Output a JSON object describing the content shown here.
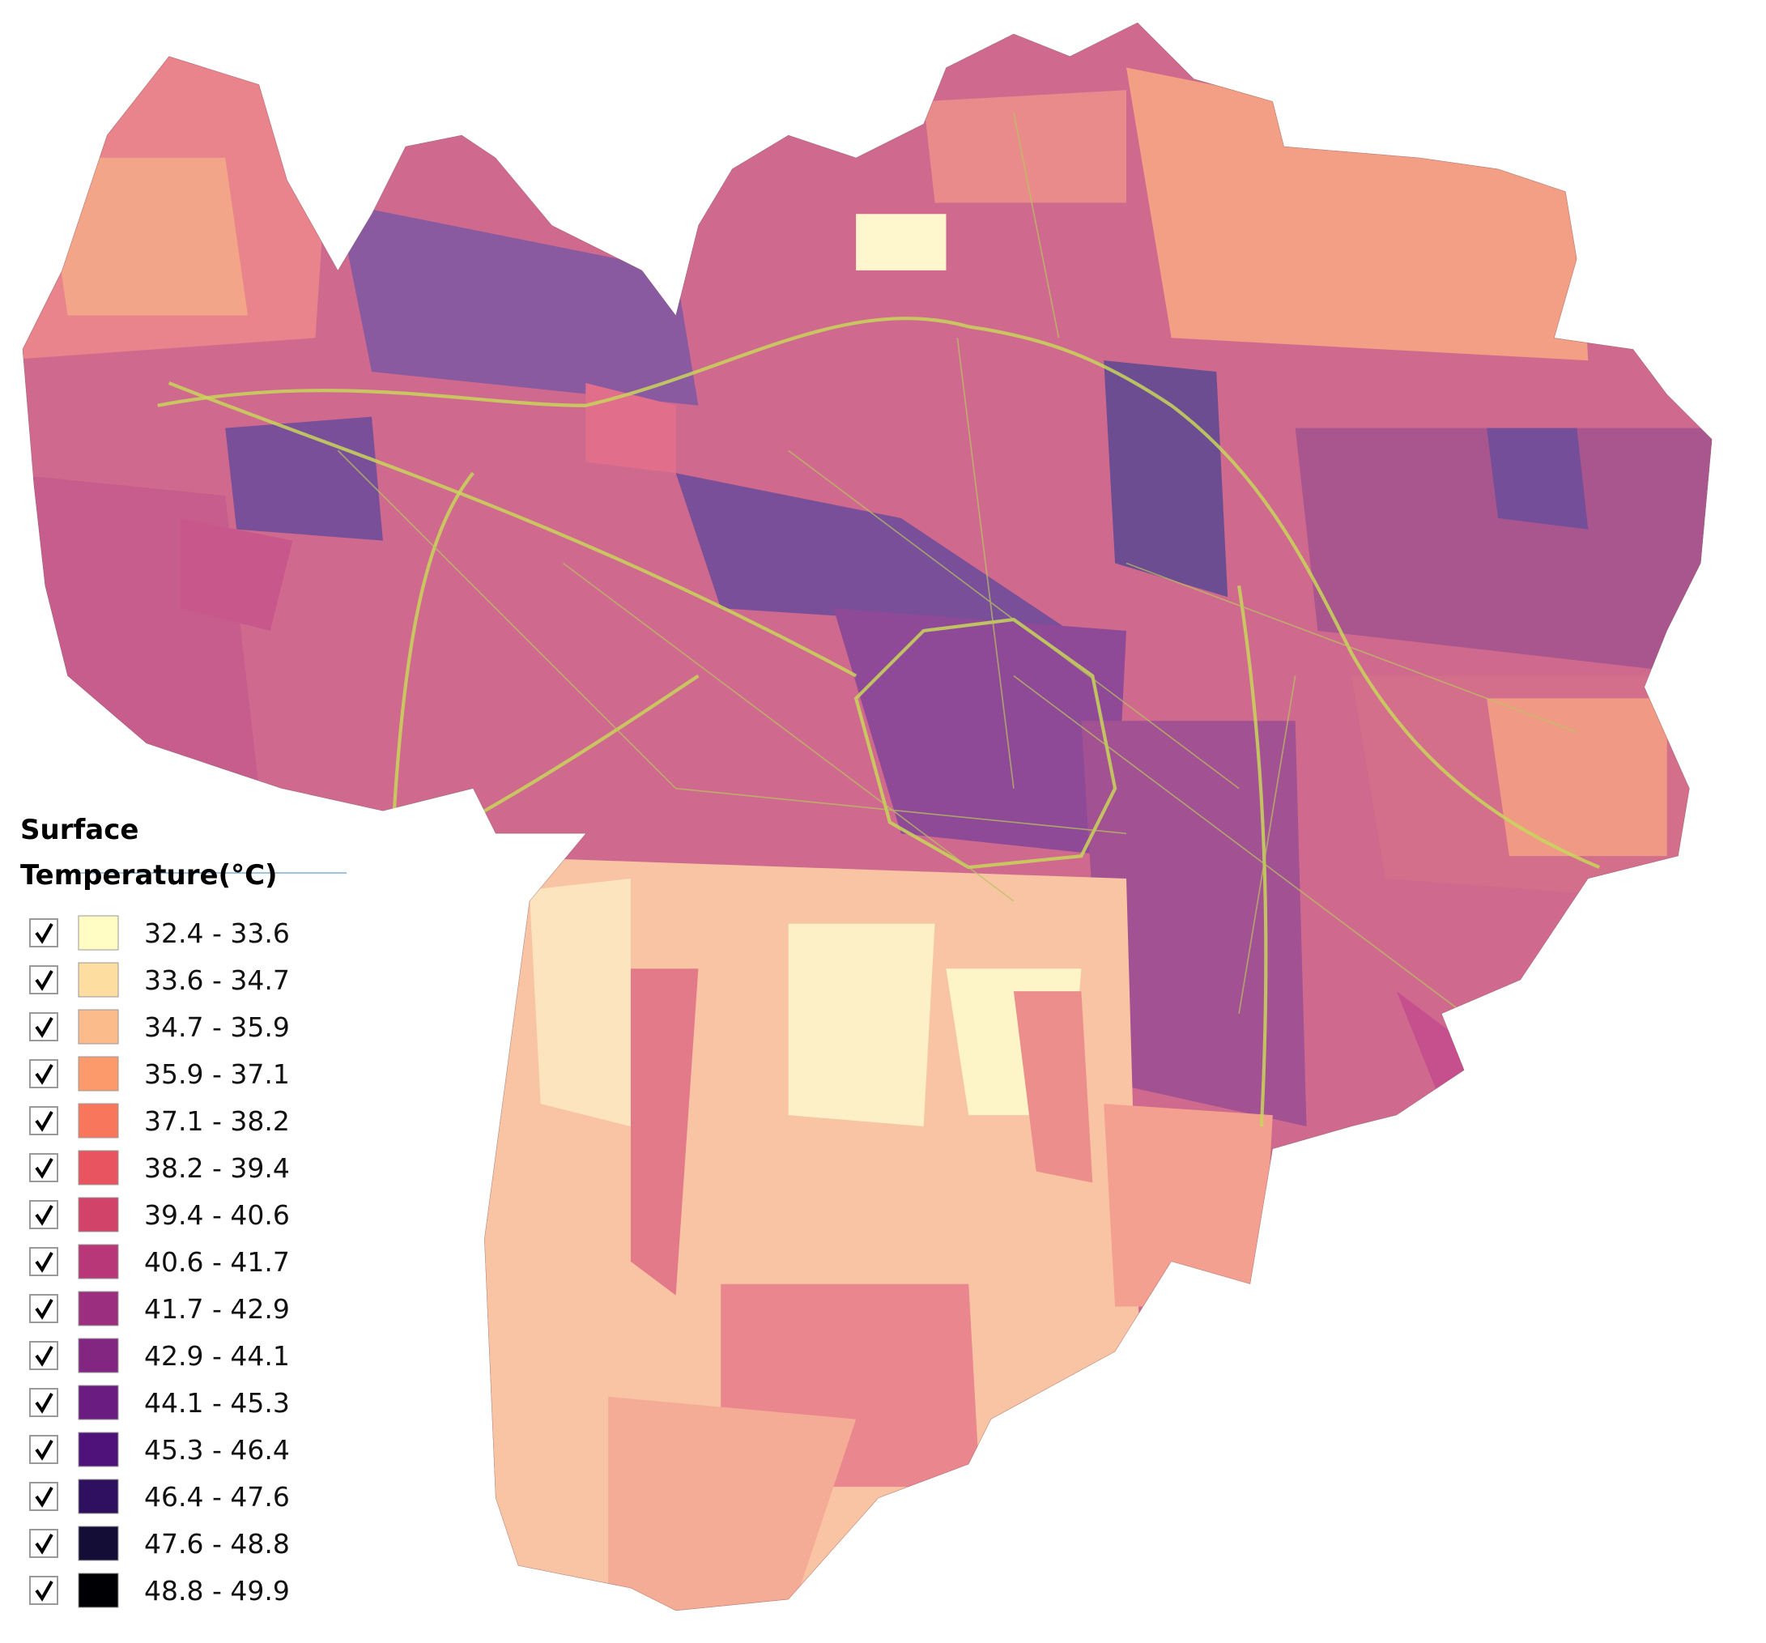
{
  "legend": {
    "title": [
      "Surface",
      "Temperature(°C)"
    ],
    "items": [
      {
        "label": "32.4 - 33.6",
        "color": "#fffdc3"
      },
      {
        "label": "33.6 - 34.7",
        "color": "#fddda0"
      },
      {
        "label": "34.7 - 35.9",
        "color": "#fcbb8b"
      },
      {
        "label": "35.9 - 37.1",
        "color": "#fc9a6c"
      },
      {
        "label": "37.1 - 38.2",
        "color": "#f8765c"
      },
      {
        "label": "38.2 - 39.4",
        "color": "#e8545f"
      },
      {
        "label": "39.4 - 40.6",
        "color": "#d14368"
      },
      {
        "label": "40.6 - 41.7",
        "color": "#b73779"
      },
      {
        "label": "41.7 - 42.9",
        "color": "#9c2e7f"
      },
      {
        "label": "42.9 - 44.1",
        "color": "#832681"
      },
      {
        "label": "44.1 - 45.3",
        "color": "#6a1c81"
      },
      {
        "label": "45.3 - 46.4",
        "color": "#4f127b"
      },
      {
        "label": "46.4 - 47.6",
        "color": "#2f0f60"
      },
      {
        "label": "47.6 - 48.8",
        "color": "#140e36"
      },
      {
        "label": "48.8 - 49.9",
        "color": "#000004"
      }
    ]
  }
}
